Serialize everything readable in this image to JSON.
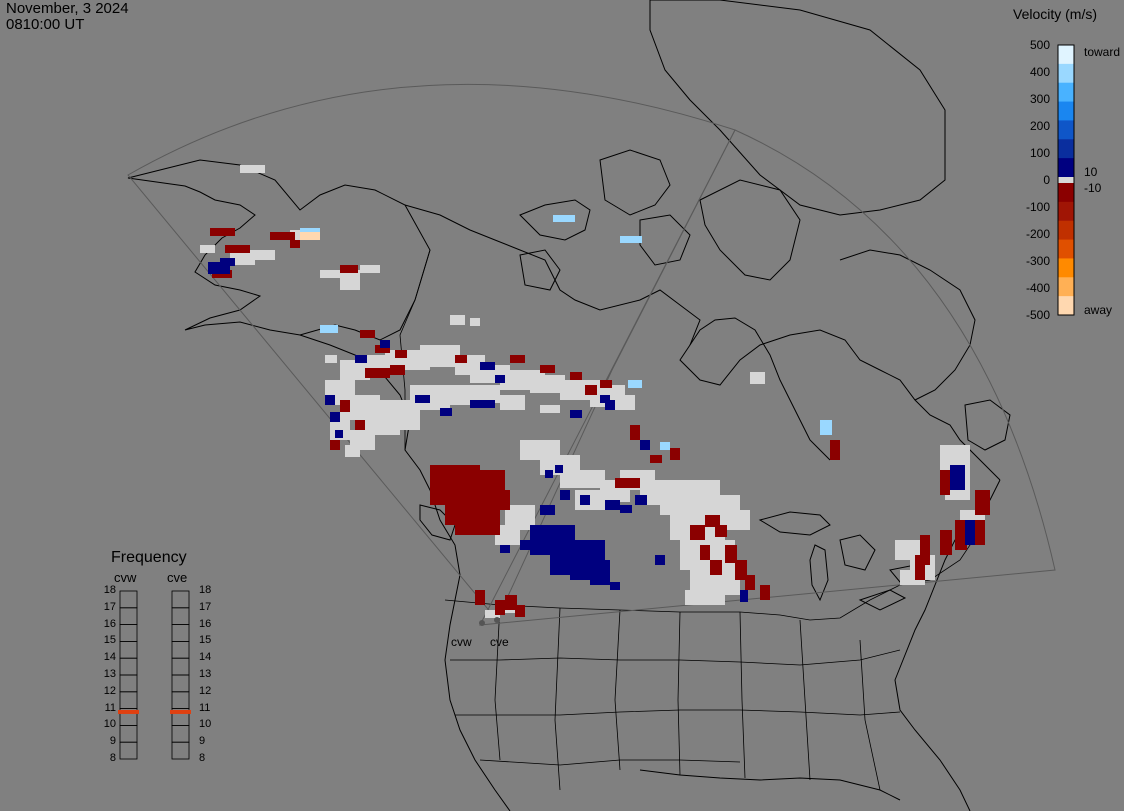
{
  "header": {
    "date": "November, 3 2024",
    "time": "0810:00 UT"
  },
  "colorbar": {
    "title": "Velocity (m/s)",
    "ticks": [
      "500",
      "400",
      "300",
      "200",
      "100",
      "0",
      "-100",
      "-200",
      "-300",
      "-400",
      "-500"
    ],
    "small_ticks": [
      "10",
      "-10"
    ],
    "toward_label": "toward",
    "away_label": "away",
    "colors_positive": [
      "#e0f4ff",
      "#9ad8ff",
      "#49b2ff",
      "#1a86f0",
      "#0f56c8",
      "#0a2e9e",
      "#000080"
    ],
    "colors_negative": [
      "#8b0000",
      "#a01505",
      "#c03000",
      "#e05000",
      "#ff8a00",
      "#ffb055",
      "#ffd8b0"
    ],
    "zero_color": "#d8d8d8"
  },
  "frequency": {
    "title": "Frequency",
    "radars": [
      "cvw",
      "cve"
    ],
    "ticks": [
      "18",
      "17",
      "16",
      "15",
      "14",
      "13",
      "12",
      "11",
      "10",
      "9",
      "8"
    ],
    "values": {
      "cvw": 10.8,
      "cve": 10.8
    },
    "indicator_color": "#e04010"
  },
  "sites": [
    "cvw",
    "cve"
  ]
}
